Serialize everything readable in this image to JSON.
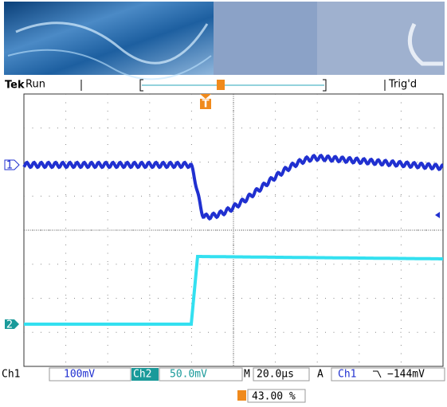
{
  "header": {
    "brand": "Tek",
    "state": "Run",
    "trigger_status": "Trig'd"
  },
  "trigger_marker": "T",
  "channels": [
    {
      "marker": "1"
    },
    {
      "marker": "2"
    }
  ],
  "footer": {
    "ch1_label": "Ch1",
    "ch1_scale": "100mV",
    "ch2_label": "Ch2",
    "ch2_scale": "50.0mV",
    "time_label": "M",
    "time_scale": "20.0µs",
    "trigger_mode": "A",
    "trigger_source": "Ch1",
    "trigger_level": "−144mV"
  },
  "trigger_position": "43.00 %"
}
